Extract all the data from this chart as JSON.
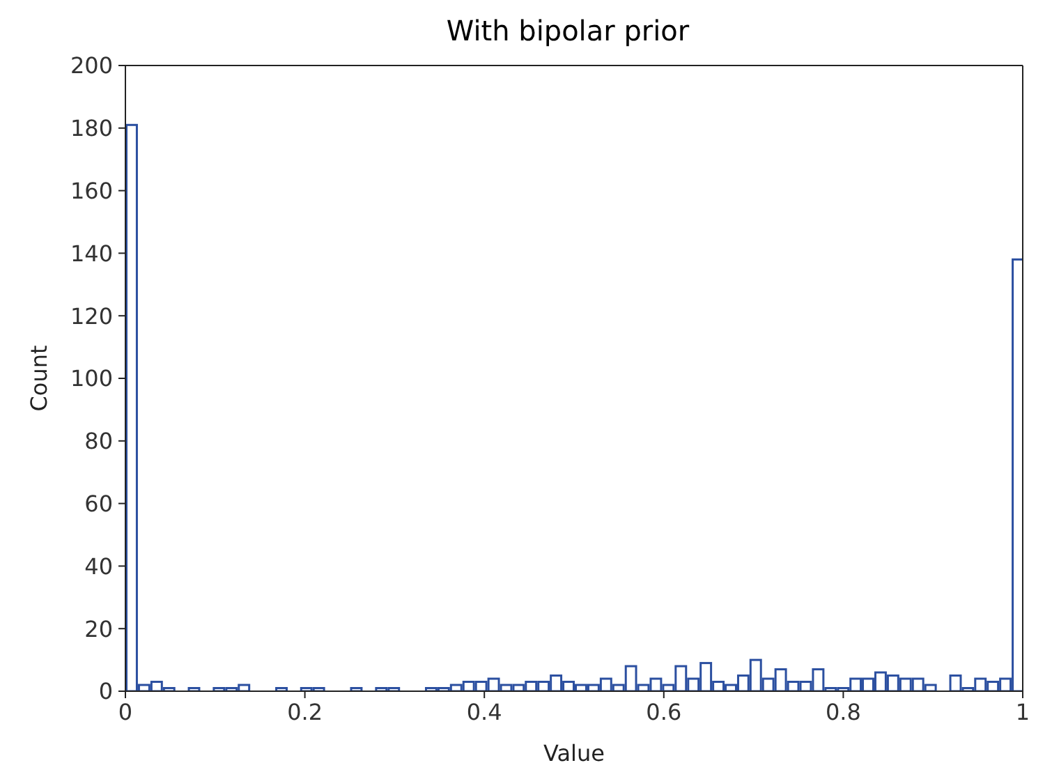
{
  "chart_data": {
    "type": "histogram",
    "title": "With bipolar prior",
    "xlabel": "Value",
    "ylabel": "Count",
    "color": "#2b4fa0",
    "bins": [
      0,
      0.0139,
      0.0278,
      0.0417,
      0.0556,
      0.0694,
      0.0833,
      0.0972,
      0.1111,
      0.125,
      0.1389,
      0.1528,
      0.1667,
      0.1806,
      0.1944,
      0.2083,
      0.2222,
      0.2361,
      0.25,
      0.2639,
      0.2778,
      0.2917,
      0.3056,
      0.3194,
      0.3333,
      0.3472,
      0.3611,
      0.375,
      0.3889,
      0.4028,
      0.4167,
      0.4306,
      0.4444,
      0.4583,
      0.4722,
      0.4861,
      0.5,
      0.5139,
      0.5278,
      0.5417,
      0.5556,
      0.5694,
      0.5833,
      0.5972,
      0.6111,
      0.625,
      0.6389,
      0.6528,
      0.6667,
      0.6806,
      0.6944,
      0.7083,
      0.7222,
      0.7361,
      0.75,
      0.7639,
      0.7778,
      0.7917,
      0.8056,
      0.8194,
      0.8333,
      0.8472,
      0.8611,
      0.875,
      0.8889,
      0.9028,
      0.9167,
      0.9306,
      0.9444,
      0.9583,
      0.9722,
      0.9861,
      1
    ],
    "values": [
      181,
      2,
      3,
      1,
      0,
      1,
      0,
      1,
      1,
      2,
      0,
      0,
      1,
      0,
      1,
      1,
      0,
      0,
      1,
      0,
      1,
      1,
      0,
      0,
      1,
      1,
      2,
      3,
      3,
      4,
      2,
      2,
      3,
      3,
      5,
      3,
      2,
      2,
      4,
      2,
      8,
      2,
      4,
      2,
      8,
      4,
      9,
      3,
      2,
      5,
      10,
      4,
      7,
      3,
      3,
      7,
      1,
      1,
      4,
      4,
      6,
      5,
      4,
      4,
      2,
      0,
      5,
      1,
      4,
      3,
      4,
      138
    ],
    "xlim": [
      0,
      1
    ],
    "xticks": [
      0,
      0.2,
      0.4,
      0.6,
      0.8,
      1
    ],
    "ylim": [
      0,
      200
    ],
    "yticks": [
      0,
      20,
      40,
      60,
      80,
      100,
      120,
      140,
      160,
      180,
      200
    ]
  }
}
